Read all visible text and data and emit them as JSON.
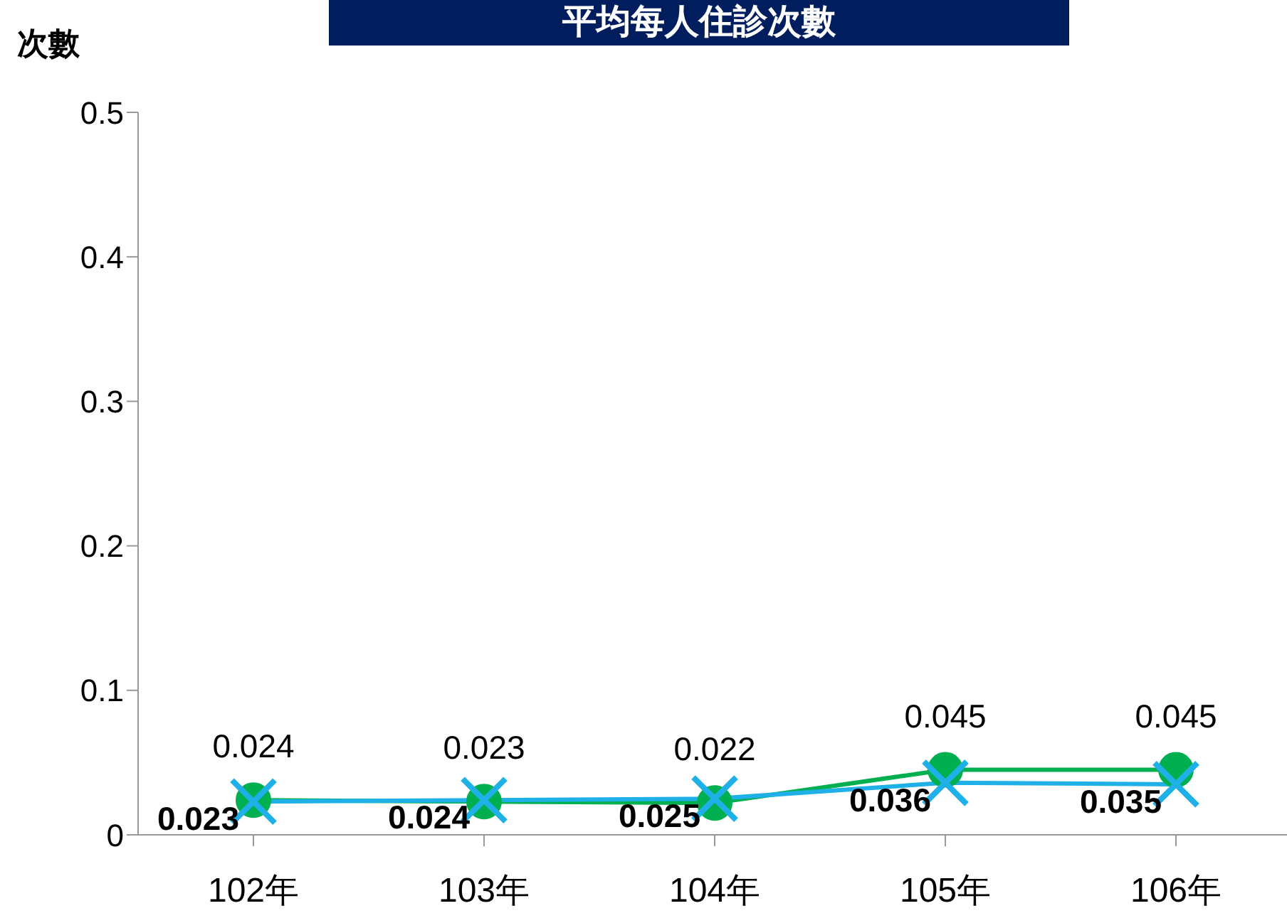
{
  "chart_data": {
    "type": "line",
    "title": "平均每人住診次數",
    "ylabel": "次數",
    "categories": [
      "102年",
      "103年",
      "104年",
      "105年",
      "106年"
    ],
    "series": [
      {
        "color": "#1fb0e8",
        "marker": "cross",
        "values": [
          0.023,
          0.024,
          0.025,
          0.036,
          0.035
        ]
      },
      {
        "color": "#00b050",
        "marker": "circle",
        "values": [
          0.024,
          0.023,
          0.022,
          0.045,
          0.045
        ]
      }
    ],
    "ylim": [
      0,
      0.5
    ],
    "yticks": [
      0,
      0.1,
      0.2,
      0.3,
      0.4,
      0.5
    ],
    "grid": false,
    "legend": false,
    "data_labels": true
  }
}
